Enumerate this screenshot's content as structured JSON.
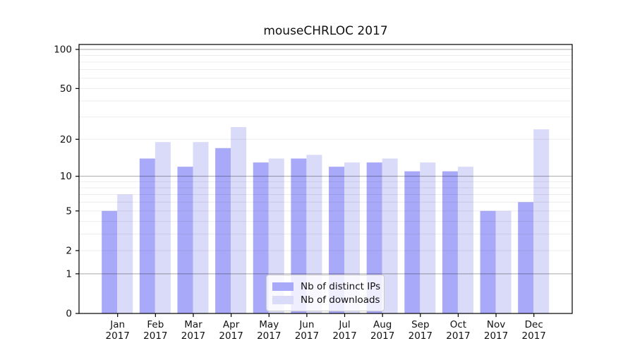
{
  "figure": {
    "background": "#ffffff"
  },
  "chart_data": {
    "type": "bar",
    "title": "mouseCHRLOC 2017",
    "categories": [
      "Jan 2017",
      "Feb 2017",
      "Mar 2017",
      "Apr 2017",
      "May 2017",
      "Jun 2017",
      "Jul 2017",
      "Aug 2017",
      "Sep 2017",
      "Oct 2017",
      "Nov 2017",
      "Dec 2017"
    ],
    "series": [
      {
        "name": "Nb of distinct IPs",
        "color": "#a9a9f9",
        "values": [
          5,
          14,
          12,
          17,
          13,
          14,
          12,
          13,
          11,
          11,
          5,
          6
        ]
      },
      {
        "name": "Nb of downloads",
        "color": "#dadaf9",
        "values": [
          7,
          19,
          19,
          25,
          14,
          15,
          13,
          14,
          13,
          12,
          5,
          24
        ]
      }
    ],
    "yscale": "log1p",
    "ylim": [
      0,
      110
    ],
    "yticks": [
      0,
      1,
      2,
      5,
      10,
      20,
      50,
      100
    ],
    "major_gridlines": [
      1,
      10,
      100
    ],
    "minor_gridlines": [
      2,
      3,
      4,
      5,
      6,
      7,
      8,
      9,
      20,
      30,
      40,
      50,
      60,
      70,
      80,
      90
    ],
    "grid": "on",
    "legend_position": "lower-center",
    "colors": {
      "axis": "#000000",
      "major_grid": "rgba(0,0,0,0.34)",
      "minor_grid": "rgba(0,0,0,0.075)",
      "tick_label": "#111111"
    }
  }
}
